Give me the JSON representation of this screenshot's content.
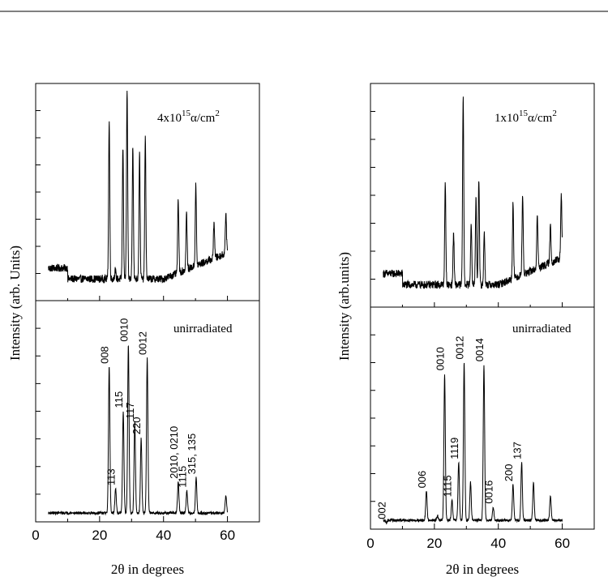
{
  "chart_data": [
    {
      "type": "line",
      "panel": "left",
      "xlabel": "2θ in degrees",
      "ylabel": "Intensity (arb. Units)",
      "x_ticks": [
        "0",
        "20",
        "40",
        "60"
      ],
      "xlim": [
        0,
        70
      ],
      "x_range": [
        4,
        60
      ],
      "subplots": [
        {
          "label": "4x10^15 α/cm^2",
          "label_parts": {
            "prefix": "4x10",
            "exponent": "15",
            "unit": "α/cm",
            "unit_exponent": "2"
          },
          "baseline": 0.1,
          "peaks": [
            {
              "x": 23.0,
              "y": 0.83
            },
            {
              "x": 24.9,
              "y": 0.14
            },
            {
              "x": 27.3,
              "y": 0.71
            },
            {
              "x": 28.6,
              "y": 0.97
            },
            {
              "x": 30.4,
              "y": 0.72
            },
            {
              "x": 32.5,
              "y": 0.68
            },
            {
              "x": 34.3,
              "y": 0.75
            },
            {
              "x": 44.6,
              "y": 0.44
            },
            {
              "x": 47.2,
              "y": 0.36
            },
            {
              "x": 50.1,
              "y": 0.47
            },
            {
              "x": 55.8,
              "y": 0.27
            },
            {
              "x": 59.5,
              "y": 0.29
            }
          ]
        },
        {
          "label": "unirradiated",
          "baseline": 0.04,
          "peaks": [
            {
              "x": 23.0,
              "y": 0.7,
              "label": "008"
            },
            {
              "x": 25.0,
              "y": 0.15,
              "label": "113"
            },
            {
              "x": 27.4,
              "y": 0.5,
              "label": "115"
            },
            {
              "x": 29.0,
              "y": 0.8,
              "label": "0010"
            },
            {
              "x": 31.0,
              "y": 0.45,
              "label": "117"
            },
            {
              "x": 33.0,
              "y": 0.38,
              "label": "220"
            },
            {
              "x": 34.9,
              "y": 0.74,
              "label": "0012"
            },
            {
              "x": 44.6,
              "y": 0.18,
              "label": "2010, 0210"
            },
            {
              "x": 47.3,
              "y": 0.14,
              "label": "1115"
            },
            {
              "x": 50.2,
              "y": 0.2,
              "label": "315, 135"
            },
            {
              "x": 59.5,
              "y": 0.12
            }
          ]
        }
      ]
    },
    {
      "type": "line",
      "panel": "right",
      "xlabel": "2θ in degrees",
      "ylabel": "Intensity (arb.units)",
      "x_ticks": [
        "0",
        "20",
        "40",
        "60"
      ],
      "xlim": [
        0,
        70
      ],
      "x_range": [
        4,
        60
      ],
      "subplots": [
        {
          "label": "1x10^15 α/cm^2",
          "label_parts": {
            "prefix": "1x10",
            "exponent": "15",
            "unit": "α/cm",
            "unit_exponent": "2"
          },
          "baseline": 0.1,
          "peaks": [
            {
              "x": 23.4,
              "y": 0.55
            },
            {
              "x": 26.0,
              "y": 0.33
            },
            {
              "x": 29.0,
              "y": 0.95
            },
            {
              "x": 31.5,
              "y": 0.38
            },
            {
              "x": 33.0,
              "y": 0.48
            },
            {
              "x": 33.9,
              "y": 0.58
            },
            {
              "x": 35.6,
              "y": 0.34
            },
            {
              "x": 44.6,
              "y": 0.44
            },
            {
              "x": 47.6,
              "y": 0.46
            },
            {
              "x": 52.2,
              "y": 0.34
            },
            {
              "x": 56.3,
              "y": 0.27
            },
            {
              "x": 59.7,
              "y": 0.38
            }
          ]
        },
        {
          "label": "unirradiated",
          "baseline": 0.04,
          "peaks": [
            {
              "x": 5.0,
              "y": 0.03,
              "label": "002"
            },
            {
              "x": 17.5,
              "y": 0.17,
              "label": "006"
            },
            {
              "x": 21.0,
              "y": 0.06
            },
            {
              "x": 23.2,
              "y": 0.7,
              "label": "0010"
            },
            {
              "x": 25.5,
              "y": 0.13,
              "label": "1115"
            },
            {
              "x": 27.6,
              "y": 0.3,
              "label": "1119"
            },
            {
              "x": 29.3,
              "y": 0.75,
              "label": "0012"
            },
            {
              "x": 31.3,
              "y": 0.21
            },
            {
              "x": 35.5,
              "y": 0.74,
              "label": "0014"
            },
            {
              "x": 38.4,
              "y": 0.1,
              "label": "0016"
            },
            {
              "x": 44.6,
              "y": 0.2,
              "label": "200"
            },
            {
              "x": 47.3,
              "y": 0.3,
              "label": "137"
            },
            {
              "x": 51.0,
              "y": 0.21
            },
            {
              "x": 56.3,
              "y": 0.15
            }
          ]
        }
      ]
    }
  ]
}
